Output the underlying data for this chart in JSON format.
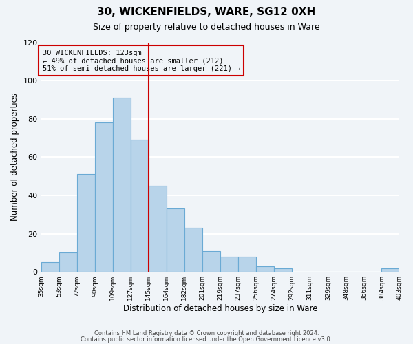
{
  "title": "30, WICKENFIELDS, WARE, SG12 0XH",
  "subtitle": "Size of property relative to detached houses in Ware",
  "xlabel": "Distribution of detached houses by size in Ware",
  "ylabel": "Number of detached properties",
  "bar_color": "#b8d4ea",
  "bar_edge_color": "#6aaad4",
  "tick_labels": [
    "35sqm",
    "53sqm",
    "72sqm",
    "90sqm",
    "109sqm",
    "127sqm",
    "145sqm",
    "164sqm",
    "182sqm",
    "201sqm",
    "219sqm",
    "237sqm",
    "256sqm",
    "274sqm",
    "292sqm",
    "311sqm",
    "329sqm",
    "348sqm",
    "366sqm",
    "384sqm",
    "403sqm"
  ],
  "values": [
    5,
    10,
    51,
    78,
    91,
    69,
    45,
    33,
    23,
    11,
    8,
    8,
    3,
    2,
    0,
    0,
    0,
    0,
    0,
    2
  ],
  "ylim": [
    0,
    120
  ],
  "yticks": [
    0,
    20,
    40,
    60,
    80,
    100,
    120
  ],
  "vline_x": 5.5,
  "vline_color": "#cc0000",
  "annotation_title": "30 WICKENFIELDS: 123sqm",
  "annotation_line1": "← 49% of detached houses are smaller (212)",
  "annotation_line2": "51% of semi-detached houses are larger (221) →",
  "footer1": "Contains HM Land Registry data © Crown copyright and database right 2024.",
  "footer2": "Contains public sector information licensed under the Open Government Licence v3.0.",
  "background_color": "#f0f4f8",
  "grid_color": "#ffffff",
  "figsize": [
    6.0,
    5.0
  ],
  "dpi": 100
}
